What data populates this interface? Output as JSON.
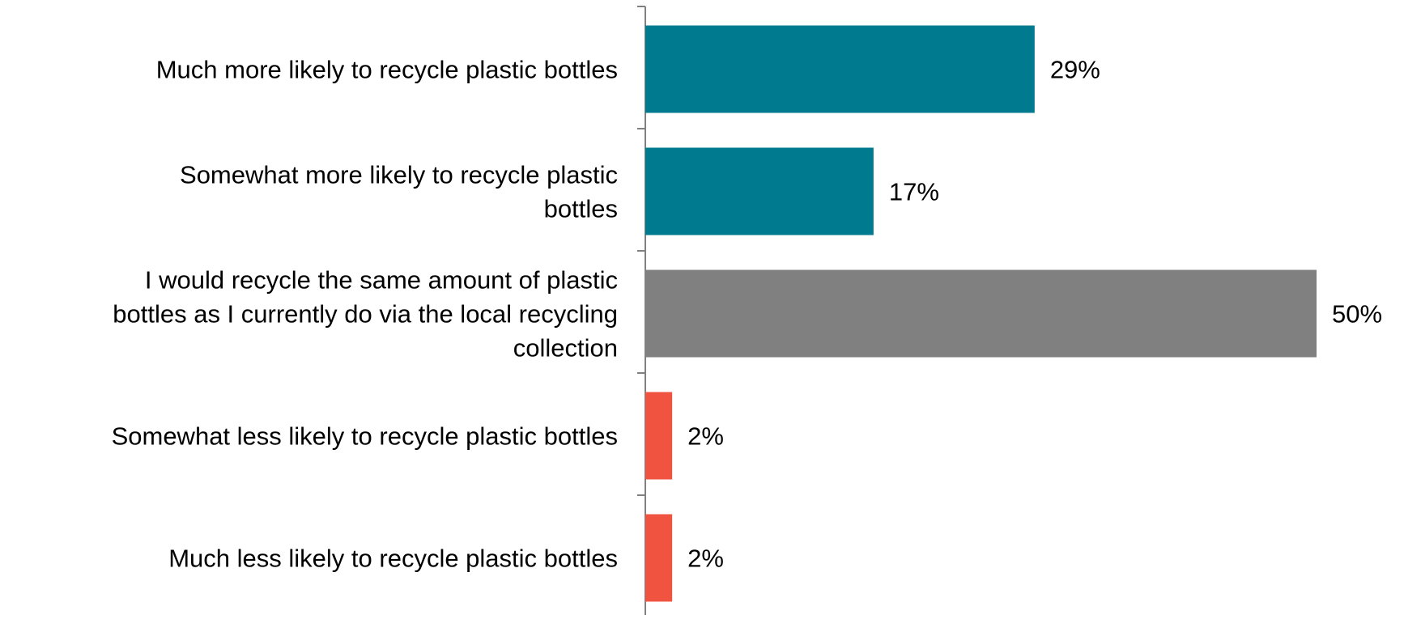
{
  "chart_data": {
    "type": "bar",
    "orientation": "horizontal",
    "title": "",
    "xlabel": "",
    "ylabel": "",
    "categories": [
      "Much more likely to recycle plastic bottles",
      "Somewhat more likely to recycle plastic bottles",
      "I would recycle the same amount of plastic bottles as I currently do via the local recycling collection",
      "Somewhat less likely to recycle plastic bottles",
      "Much less likely to recycle plastic bottles"
    ],
    "category_lines": [
      [
        "Much more likely to recycle plastic bottles"
      ],
      [
        "Somewhat more likely to recycle plastic",
        "bottles"
      ],
      [
        "I would recycle the same amount of plastic",
        "bottles as I currently do via the local recycling",
        "collection"
      ],
      [
        "Somewhat less likely to recycle plastic bottles"
      ],
      [
        "Much less likely to recycle plastic bottles"
      ]
    ],
    "values": [
      29,
      17,
      50,
      2,
      2
    ],
    "data_labels": [
      "29%",
      "17%",
      "50%",
      "2%",
      "2%"
    ],
    "bar_colors": [
      "#007A8E",
      "#007A8E",
      "#808080",
      "#F05440",
      "#F05440"
    ],
    "xlim": [
      0,
      50
    ],
    "grid": false,
    "legend": "none",
    "axis_color": "#808080"
  }
}
